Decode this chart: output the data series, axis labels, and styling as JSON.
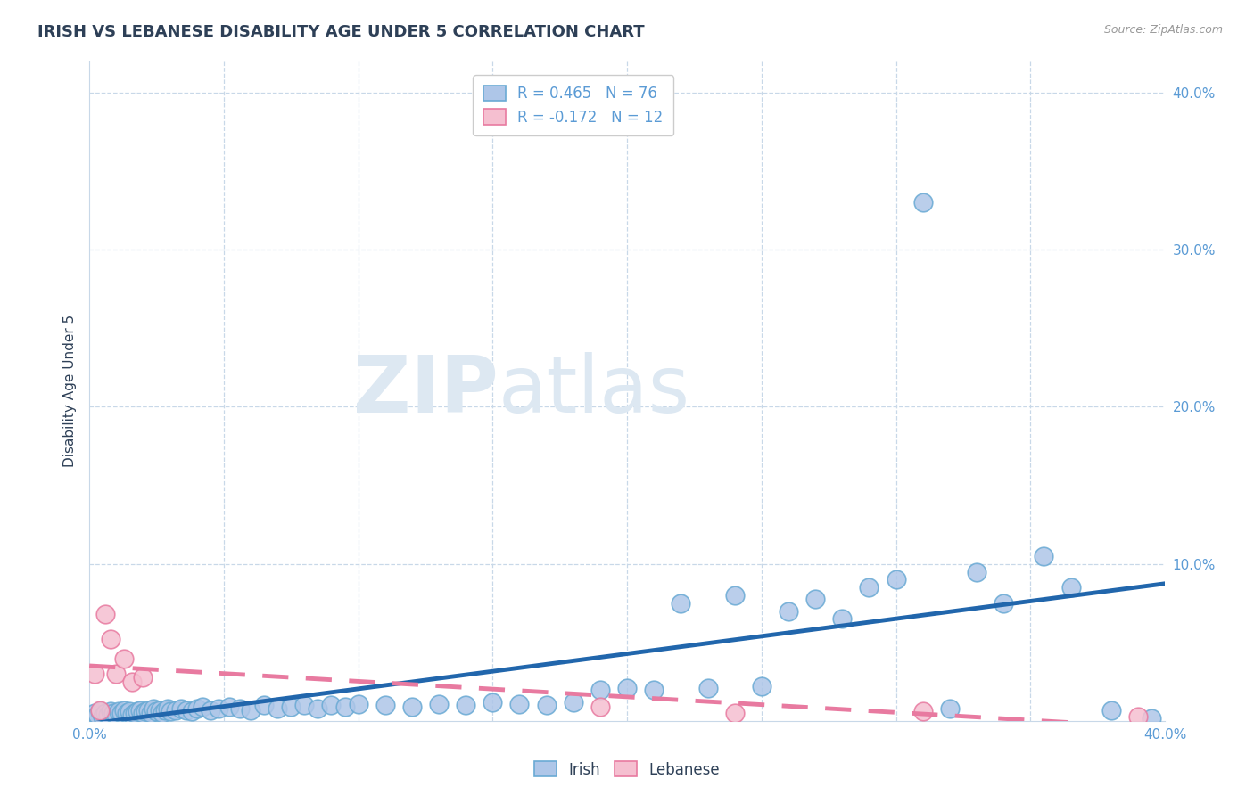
{
  "title": "IRISH VS LEBANESE DISABILITY AGE UNDER 5 CORRELATION CHART",
  "source": "Source: ZipAtlas.com",
  "ylabel": "Disability Age Under 5",
  "xlim": [
    0.0,
    0.4
  ],
  "ylim": [
    0.0,
    0.42
  ],
  "irish_color": "#aec6e8",
  "irish_edge_color": "#6aaad4",
  "lebanese_color": "#f5bfd0",
  "lebanese_edge_color": "#e87aa0",
  "irish_line_color": "#2166ac",
  "lebanese_line_color": "#e87aa0",
  "legend_R_irish": "R = 0.465",
  "legend_N_irish": "N = 76",
  "legend_R_lebanese": "R = -0.172",
  "legend_N_lebanese": "N = 12",
  "watermark_zip": "ZIP",
  "watermark_atlas": "atlas",
  "watermark_color": "#dde8f2",
  "irish_x": [
    0.002,
    0.003,
    0.004,
    0.005,
    0.006,
    0.007,
    0.008,
    0.009,
    0.01,
    0.011,
    0.012,
    0.013,
    0.014,
    0.015,
    0.016,
    0.017,
    0.018,
    0.019,
    0.02,
    0.021,
    0.022,
    0.023,
    0.024,
    0.025,
    0.026,
    0.027,
    0.028,
    0.029,
    0.03,
    0.032,
    0.034,
    0.036,
    0.038,
    0.04,
    0.042,
    0.045,
    0.048,
    0.052,
    0.056,
    0.06,
    0.065,
    0.07,
    0.075,
    0.08,
    0.085,
    0.09,
    0.095,
    0.1,
    0.11,
    0.12,
    0.13,
    0.14,
    0.15,
    0.16,
    0.17,
    0.18,
    0.19,
    0.2,
    0.21,
    0.22,
    0.23,
    0.24,
    0.25,
    0.26,
    0.27,
    0.28,
    0.29,
    0.3,
    0.31,
    0.32,
    0.33,
    0.34,
    0.355,
    0.365,
    0.38,
    0.395
  ],
  "irish_y": [
    0.005,
    0.004,
    0.006,
    0.003,
    0.005,
    0.004,
    0.006,
    0.005,
    0.004,
    0.006,
    0.005,
    0.007,
    0.005,
    0.006,
    0.004,
    0.005,
    0.006,
    0.007,
    0.005,
    0.006,
    0.007,
    0.005,
    0.008,
    0.006,
    0.007,
    0.005,
    0.007,
    0.008,
    0.006,
    0.007,
    0.008,
    0.007,
    0.006,
    0.008,
    0.009,
    0.007,
    0.008,
    0.009,
    0.008,
    0.007,
    0.01,
    0.008,
    0.009,
    0.01,
    0.008,
    0.01,
    0.009,
    0.011,
    0.01,
    0.009,
    0.011,
    0.01,
    0.012,
    0.011,
    0.01,
    0.012,
    0.02,
    0.021,
    0.02,
    0.075,
    0.021,
    0.08,
    0.022,
    0.07,
    0.078,
    0.065,
    0.085,
    0.09,
    0.33,
    0.008,
    0.095,
    0.075,
    0.105,
    0.085,
    0.007,
    0.002
  ],
  "lebanese_x": [
    0.002,
    0.004,
    0.006,
    0.008,
    0.01,
    0.013,
    0.016,
    0.02,
    0.19,
    0.24,
    0.31,
    0.39
  ],
  "lebanese_y": [
    0.03,
    0.007,
    0.068,
    0.052,
    0.03,
    0.04,
    0.025,
    0.028,
    0.009,
    0.005,
    0.006,
    0.003
  ],
  "title_color": "#2e4057",
  "title_fontsize": 13,
  "axis_label_color": "#5b9bd5",
  "tick_fontsize": 11,
  "grid_color": "#c8d8e8",
  "background_color": "#ffffff"
}
